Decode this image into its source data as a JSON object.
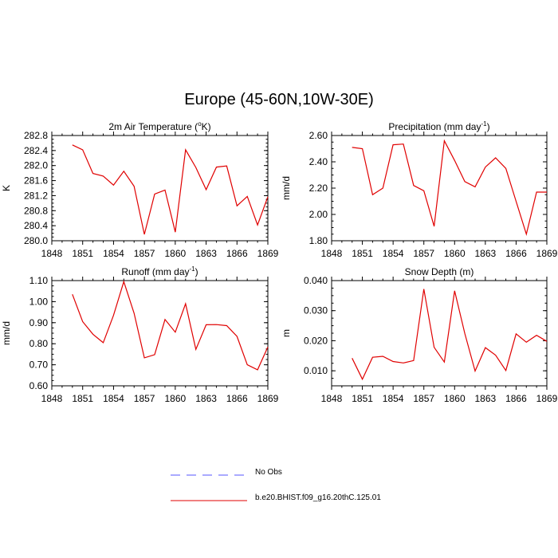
{
  "figure": {
    "title": "Europe (45-60N,10W-30E)"
  },
  "legend": [
    {
      "label": "No Obs",
      "color": "#5555ff",
      "style": "dashed"
    },
    {
      "label": "b.e20.BHIST.f09_g16.20thC.125.01",
      "color": "#e00000",
      "style": "solid"
    }
  ],
  "chart_data": [
    {
      "type": "line",
      "title": "2m Air Temperature (°K)",
      "title_parts": {
        "before": "2m Air Temperature (",
        "sup": "o",
        "after": "K)"
      },
      "ylabel": "K",
      "xlim": [
        1848,
        1869
      ],
      "x_ticks": [
        1848,
        1851,
        1854,
        1857,
        1860,
        1863,
        1866,
        1869
      ],
      "ylim": [
        280.0,
        282.8
      ],
      "y_ticks": [
        "280.0",
        "280.4",
        "280.8",
        "281.2",
        "281.6",
        "282.0",
        "282.4",
        "282.8"
      ],
      "series": [
        {
          "color": "#e00000",
          "x": [
            1850,
            1851,
            1852,
            1853,
            1854,
            1855,
            1856,
            1857,
            1858,
            1859,
            1860,
            1861,
            1862,
            1863,
            1864,
            1865,
            1866,
            1867,
            1868,
            1869
          ],
          "y": [
            282.55,
            282.42,
            281.79,
            281.72,
            281.48,
            281.85,
            281.45,
            280.17,
            281.24,
            281.35,
            280.23,
            282.42,
            281.95,
            281.36,
            281.96,
            281.99,
            280.93,
            281.18,
            280.42,
            281.17
          ]
        }
      ]
    },
    {
      "type": "line",
      "title": "Precipitation (mm day-1)",
      "title_parts": {
        "before": "Precipitation (mm day",
        "sup": "-1",
        "after": ")"
      },
      "ylabel": "mm/d",
      "xlim": [
        1848,
        1869
      ],
      "x_ticks": [
        1848,
        1851,
        1854,
        1857,
        1860,
        1863,
        1866,
        1869
      ],
      "ylim": [
        1.8,
        2.6
      ],
      "y_ticks": [
        "1.80",
        "2.00",
        "2.20",
        "2.40",
        "2.60"
      ],
      "series": [
        {
          "color": "#e00000",
          "x": [
            1850,
            1851,
            1852,
            1853,
            1854,
            1855,
            1856,
            1857,
            1858,
            1859,
            1860,
            1861,
            1862,
            1863,
            1864,
            1865,
            1866,
            1867,
            1868,
            1869
          ],
          "y": [
            2.51,
            2.5,
            2.15,
            2.2,
            2.53,
            2.535,
            2.22,
            2.18,
            1.91,
            2.56,
            2.41,
            2.25,
            2.21,
            2.36,
            2.43,
            2.35,
            2.1,
            1.85,
            2.17,
            2.17
          ]
        }
      ]
    },
    {
      "type": "line",
      "title": "Runoff (mm day-1)",
      "title_parts": {
        "before": "Runoff (mm day",
        "sup": "-1",
        "after": ")"
      },
      "ylabel": "mm/d",
      "xlim": [
        1848,
        1869
      ],
      "x_ticks": [
        1848,
        1851,
        1854,
        1857,
        1860,
        1863,
        1866,
        1869
      ],
      "ylim": [
        0.6,
        1.1
      ],
      "y_ticks": [
        "0.60",
        "0.70",
        "0.80",
        "0.90",
        "1.00",
        "1.10"
      ],
      "series": [
        {
          "color": "#e00000",
          "x": [
            1850,
            1851,
            1852,
            1853,
            1854,
            1855,
            1856,
            1857,
            1858,
            1859,
            1860,
            1861,
            1862,
            1863,
            1864,
            1865,
            1866,
            1867,
            1868,
            1869
          ],
          "y": [
            1.035,
            0.905,
            0.845,
            0.805,
            0.935,
            1.095,
            0.945,
            0.733,
            0.748,
            0.915,
            0.855,
            0.99,
            0.773,
            0.89,
            0.891,
            0.886,
            0.835,
            0.7,
            0.676,
            0.785
          ]
        }
      ]
    },
    {
      "type": "line",
      "title": "Snow Depth (m)",
      "title_parts": {
        "before": "Snow Depth (m)",
        "sup": "",
        "after": ""
      },
      "ylabel": "m",
      "xlim": [
        1848,
        1869
      ],
      "x_ticks": [
        1848,
        1851,
        1854,
        1857,
        1860,
        1863,
        1866,
        1869
      ],
      "ylim": [
        0.005,
        0.04
      ],
      "y_ticks": [
        "0.010",
        "0.020",
        "0.030",
        "0.040"
      ],
      "series": [
        {
          "color": "#e00000",
          "x": [
            1850,
            1851,
            1852,
            1853,
            1854,
            1855,
            1856,
            1857,
            1858,
            1859,
            1860,
            1861,
            1862,
            1863,
            1864,
            1865,
            1866,
            1867,
            1868,
            1869
          ],
          "y": [
            0.0142,
            0.0072,
            0.0145,
            0.0148,
            0.0131,
            0.0126,
            0.0134,
            0.0372,
            0.0178,
            0.0129,
            0.0366,
            0.0224,
            0.0099,
            0.0177,
            0.0152,
            0.0101,
            0.0223,
            0.0195,
            0.0218,
            0.0198
          ]
        }
      ]
    }
  ]
}
